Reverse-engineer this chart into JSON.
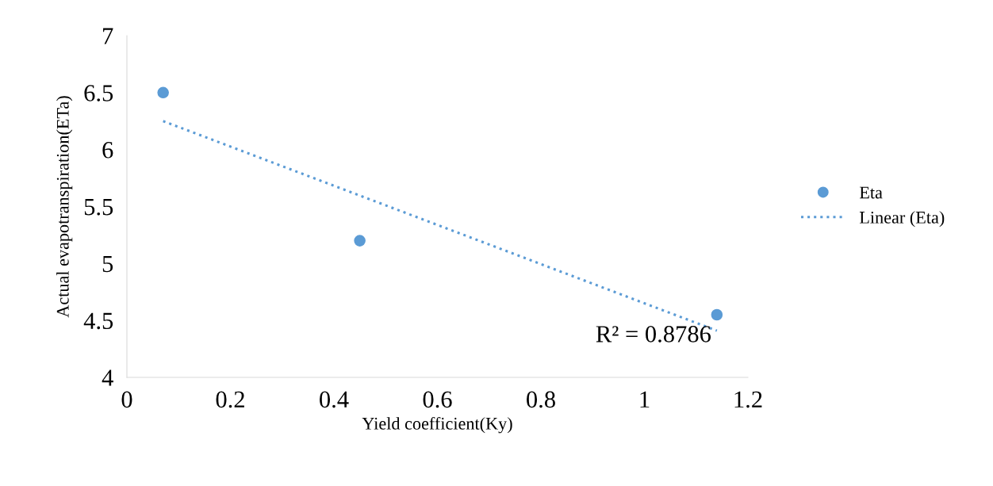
{
  "chart_data": {
    "type": "scatter",
    "xlabel": "Yield coefficient(Ky)",
    "ylabel": "Actual evapotranspiration(ETa)",
    "series": [
      {
        "name": "Eta",
        "color": "#5b9bd5",
        "x": [
          0.07,
          0.45,
          1.14
        ],
        "values": [
          6.5,
          5.2,
          4.55
        ],
        "marker": "circle"
      },
      {
        "name": "Linear (Eta)",
        "type": "line",
        "color": "#5b9bd5",
        "x": [
          0.07,
          1.14
        ],
        "values": [
          6.25,
          4.41
        ],
        "line_style": "dotted",
        "marker": "none"
      }
    ],
    "annotations": [
      {
        "text": "R² = 0.8786",
        "x": 1.14,
        "y": 4.41
      }
    ],
    "xlim": [
      0,
      1.2
    ],
    "xticks": [
      0,
      0.2,
      0.4,
      0.6,
      0.8,
      1,
      1.2
    ],
    "ylim": [
      4,
      7
    ],
    "yticks": [
      4,
      4.5,
      5,
      5.5,
      6,
      6.5,
      7
    ],
    "grid": false,
    "legend": "right"
  }
}
